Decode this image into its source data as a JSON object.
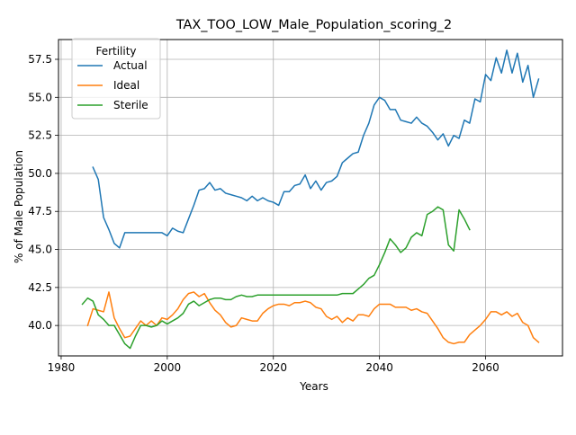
{
  "chart_data": {
    "type": "line",
    "title": "TAX_TOO_LOW_Male_Population_scoring_2",
    "xlabel": "Years",
    "ylabel": "% of Male Population",
    "xlim": [
      1979.5,
      2074.5
    ],
    "ylim": [
      38.0,
      58.8
    ],
    "xticks": [
      1980,
      2000,
      2020,
      2040,
      2060
    ],
    "yticks": [
      40.0,
      42.5,
      45.0,
      47.5,
      50.0,
      52.5,
      55.0,
      57.5
    ],
    "grid": true,
    "legend": {
      "title": "Fertility",
      "placement": "top-left"
    },
    "series": [
      {
        "name": "Actual",
        "color": "#1f77b4",
        "x": [
          1986,
          1987,
          1988,
          1989,
          1990,
          1991,
          1992,
          1993,
          1994,
          1995,
          1996,
          1997,
          1998,
          1999,
          2000,
          2001,
          2002,
          2003,
          2004,
          2005,
          2006,
          2007,
          2008,
          2009,
          2010,
          2011,
          2012,
          2013,
          2014,
          2015,
          2016,
          2017,
          2018,
          2019,
          2020,
          2021,
          2022,
          2023,
          2024,
          2025,
          2026,
          2027,
          2028,
          2029,
          2030,
          2031,
          2032,
          2033,
          2034,
          2035,
          2036,
          2037,
          2038,
          2039,
          2040,
          2041,
          2042,
          2043,
          2044,
          2045,
          2046,
          2047,
          2048,
          2049,
          2050,
          2051,
          2052,
          2053,
          2054,
          2055,
          2056,
          2057,
          2058,
          2059,
          2060,
          2061,
          2062,
          2063,
          2064,
          2065,
          2066,
          2067,
          2068,
          2069,
          2070
        ],
        "values": [
          50.4,
          49.6,
          47.1,
          46.3,
          45.4,
          45.1,
          46.1,
          46.1,
          46.1,
          46.1,
          46.1,
          46.1,
          46.1,
          46.1,
          45.9,
          46.4,
          46.2,
          46.1,
          47.0,
          47.9,
          48.9,
          49.0,
          49.4,
          48.9,
          49.0,
          48.7,
          48.6,
          48.5,
          48.4,
          48.2,
          48.5,
          48.2,
          48.4,
          48.2,
          48.1,
          47.9,
          48.8,
          48.8,
          49.2,
          49.3,
          49.9,
          49.0,
          49.5,
          48.9,
          49.4,
          49.5,
          49.8,
          50.7,
          51.0,
          51.3,
          51.4,
          52.5,
          53.3,
          54.5,
          55.0,
          54.8,
          54.2,
          54.2,
          53.5,
          53.4,
          53.3,
          53.7,
          53.3,
          53.1,
          52.7,
          52.2,
          52.6,
          51.8,
          52.5,
          52.3,
          53.5,
          53.3,
          54.9,
          54.7,
          56.5,
          56.1,
          57.6,
          56.6,
          58.1,
          56.6,
          57.9,
          56.0,
          57.1,
          55.0,
          56.2
        ]
      },
      {
        "name": "Ideal",
        "color": "#ff7f0e",
        "x": [
          1985,
          1986,
          1987,
          1988,
          1989,
          1990,
          1991,
          1992,
          1993,
          1994,
          1995,
          1996,
          1997,
          1998,
          1999,
          2000,
          2001,
          2002,
          2003,
          2004,
          2005,
          2006,
          2007,
          2008,
          2009,
          2010,
          2011,
          2012,
          2013,
          2014,
          2015,
          2016,
          2017,
          2018,
          2019,
          2020,
          2021,
          2022,
          2023,
          2024,
          2025,
          2026,
          2027,
          2028,
          2029,
          2030,
          2031,
          2032,
          2033,
          2034,
          2035,
          2036,
          2037,
          2038,
          2039,
          2040,
          2041,
          2042,
          2043,
          2044,
          2045,
          2046,
          2047,
          2048,
          2049,
          2050,
          2051,
          2052,
          2053,
          2054,
          2055,
          2056,
          2057,
          2058,
          2059,
          2060,
          2061,
          2062,
          2063,
          2064,
          2065,
          2066,
          2067,
          2068,
          2069,
          2070
        ],
        "values": [
          40.0,
          41.1,
          41.0,
          40.9,
          42.2,
          40.5,
          39.8,
          39.2,
          39.3,
          39.8,
          40.3,
          40.0,
          40.3,
          40.0,
          40.5,
          40.4,
          40.7,
          41.1,
          41.7,
          42.1,
          42.2,
          41.9,
          42.1,
          41.5,
          41.0,
          40.7,
          40.2,
          39.9,
          40.0,
          40.5,
          40.4,
          40.3,
          40.3,
          40.8,
          41.1,
          41.3,
          41.4,
          41.4,
          41.3,
          41.5,
          41.5,
          41.6,
          41.5,
          41.2,
          41.1,
          40.6,
          40.4,
          40.6,
          40.2,
          40.5,
          40.3,
          40.7,
          40.7,
          40.6,
          41.1,
          41.4,
          41.4,
          41.4,
          41.2,
          41.2,
          41.2,
          41.0,
          41.1,
          40.9,
          40.8,
          40.3,
          39.8,
          39.2,
          38.9,
          38.8,
          38.9,
          38.9,
          39.4,
          39.7,
          40.0,
          40.4,
          40.9,
          40.9,
          40.7,
          40.9,
          40.6,
          40.8,
          40.2,
          40.0,
          39.2,
          38.9
        ]
      },
      {
        "name": "Sterile",
        "color": "#2ca02c",
        "x": [
          1984,
          1985,
          1986,
          1987,
          1988,
          1989,
          1990,
          1991,
          1992,
          1993,
          1994,
          1995,
          1996,
          1997,
          1998,
          1999,
          2000,
          2001,
          2002,
          2003,
          2004,
          2005,
          2006,
          2007,
          2008,
          2009,
          2010,
          2011,
          2012,
          2013,
          2014,
          2015,
          2016,
          2017,
          2018,
          2019,
          2020,
          2021,
          2022,
          2023,
          2024,
          2025,
          2026,
          2027,
          2028,
          2029,
          2030,
          2031,
          2032,
          2033,
          2034,
          2035,
          2036,
          2037,
          2038,
          2039,
          2040,
          2041,
          2042,
          2043,
          2044,
          2045,
          2046,
          2047,
          2048,
          2049,
          2050,
          2051,
          2052,
          2053,
          2054,
          2055,
          2056,
          2057
        ],
        "values": [
          41.4,
          41.8,
          41.6,
          40.7,
          40.4,
          40.0,
          40.0,
          39.4,
          38.8,
          38.5,
          39.3,
          40.0,
          40.0,
          39.9,
          40.0,
          40.3,
          40.1,
          40.3,
          40.5,
          40.8,
          41.4,
          41.6,
          41.3,
          41.5,
          41.7,
          41.8,
          41.8,
          41.7,
          41.7,
          41.9,
          42.0,
          41.9,
          41.9,
          42.0,
          42.0,
          42.0,
          42.0,
          42.0,
          42.0,
          42.0,
          42.0,
          42.0,
          42.0,
          42.0,
          42.0,
          42.0,
          42.0,
          42.0,
          42.0,
          42.1,
          42.1,
          42.1,
          42.4,
          42.7,
          43.1,
          43.3,
          44.0,
          44.8,
          45.7,
          45.3,
          44.8,
          45.1,
          45.8,
          46.1,
          45.9,
          47.3,
          47.5,
          47.8,
          47.6,
          45.3,
          44.9,
          47.6,
          47.0,
          46.3
        ]
      }
    ]
  }
}
